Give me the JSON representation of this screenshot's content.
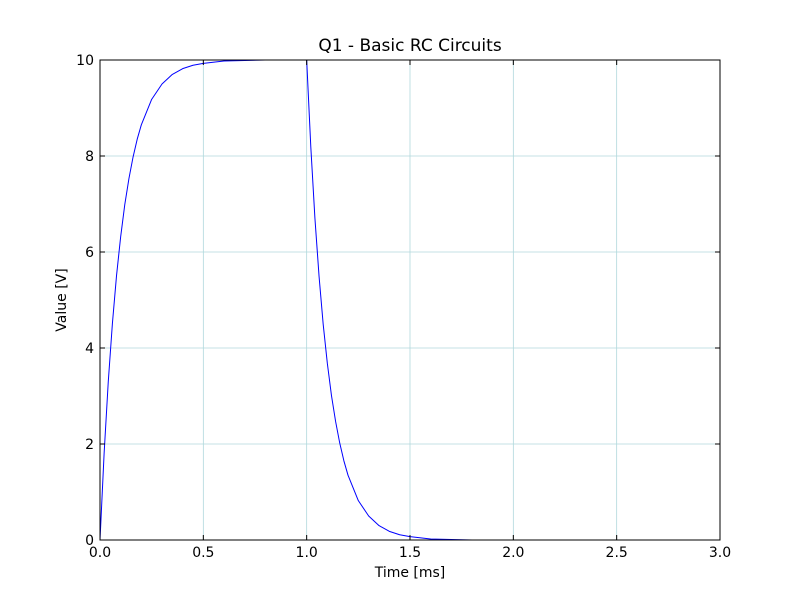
{
  "chart_data": {
    "type": "line",
    "title": "Q1 - Basic RC Circuits",
    "xlabel": "Time  [ms]",
    "ylabel": "Value [V]",
    "xlim": [
      0.0,
      3.0
    ],
    "ylim": [
      0,
      10
    ],
    "xticks": [
      "0.0",
      "0.5",
      "1.0",
      "1.5",
      "2.0",
      "2.5",
      "3.0"
    ],
    "yticks": [
      "0",
      "2",
      "4",
      "6",
      "8",
      "10"
    ],
    "grid": true,
    "legend": "none",
    "colors": {
      "line": "#0000ff",
      "grid": "#b0d8dc",
      "axes": "#000000"
    },
    "series": [
      {
        "values": [
          [
            0.0,
            0.0
          ],
          [
            0.02,
            1.81
          ],
          [
            0.04,
            3.3
          ],
          [
            0.06,
            4.51
          ],
          [
            0.08,
            5.51
          ],
          [
            0.1,
            6.32
          ],
          [
            0.12,
            6.99
          ],
          [
            0.14,
            7.53
          ],
          [
            0.16,
            7.98
          ],
          [
            0.18,
            8.35
          ],
          [
            0.2,
            8.65
          ],
          [
            0.25,
            9.18
          ],
          [
            0.3,
            9.5
          ],
          [
            0.35,
            9.7
          ],
          [
            0.4,
            9.82
          ],
          [
            0.45,
            9.89
          ],
          [
            0.5,
            9.93
          ],
          [
            0.6,
            9.98
          ],
          [
            0.7,
            9.99
          ],
          [
            0.8,
            10.0
          ],
          [
            0.9,
            10.0
          ],
          [
            1.0,
            10.0
          ],
          [
            1.02,
            8.19
          ],
          [
            1.04,
            6.7
          ],
          [
            1.06,
            5.49
          ],
          [
            1.08,
            4.49
          ],
          [
            1.1,
            3.68
          ],
          [
            1.12,
            3.01
          ],
          [
            1.14,
            2.47
          ],
          [
            1.16,
            2.02
          ],
          [
            1.18,
            1.65
          ],
          [
            1.2,
            1.35
          ],
          [
            1.25,
            0.82
          ],
          [
            1.3,
            0.5
          ],
          [
            1.35,
            0.3
          ],
          [
            1.4,
            0.18
          ],
          [
            1.45,
            0.11
          ],
          [
            1.5,
            0.07
          ],
          [
            1.6,
            0.02
          ],
          [
            1.7,
            0.01
          ],
          [
            1.8,
            0.0
          ],
          [
            2.0,
            0.0
          ],
          [
            2.5,
            0.0
          ],
          [
            3.0,
            0.0
          ]
        ]
      }
    ]
  }
}
